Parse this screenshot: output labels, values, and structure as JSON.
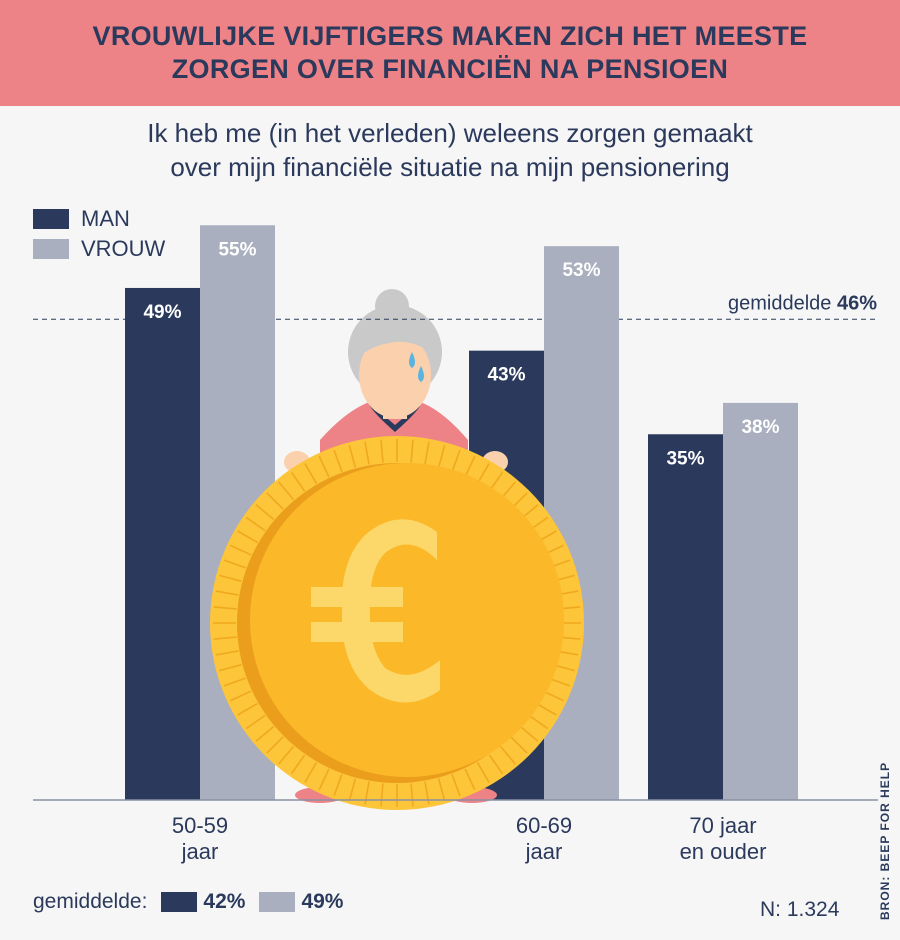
{
  "header": {
    "title_line1": "VROUWLIJKE VIJFTIGERS MAKEN ZICH HET MEESTE",
    "title_line2": "ZORGEN OVER FINANCIËN NA PENSIOEN"
  },
  "subtitle": {
    "line1": "Ik heb me (in het verleden) weleens zorgen gemaakt",
    "line2": "over mijn financiële situatie na mijn pensionering"
  },
  "legend": {
    "man": "MAN",
    "vrouw": "VROUW"
  },
  "average_line": {
    "label": "gemiddelde",
    "value_label": "46%"
  },
  "footer": {
    "avg_label": "gemiddelde:",
    "man_avg": "42%",
    "vrouw_avg": "49%",
    "n_label": "N: 1.324",
    "source": "BRON: BEEP FOR HELP"
  },
  "colors": {
    "man": "#2b3a5c",
    "vrouw": "#a9afbf",
    "header_bg": "#ee8387",
    "coin": "#fbb829",
    "coin_face": "#fcbe2c",
    "euro": "#fcd76a"
  },
  "illustration": {
    "type": "grandmother holding euro coin with tear",
    "icon": "euro-coin-icon"
  },
  "chart_data": {
    "type": "bar",
    "categories": [
      [
        "50-59",
        "jaar"
      ],
      [
        "60-69",
        "jaar"
      ],
      [
        "70 jaar",
        "en ouder"
      ]
    ],
    "series": [
      {
        "name": "MAN",
        "values": [
          49,
          43,
          35
        ]
      },
      {
        "name": "VROUW",
        "values": [
          55,
          53,
          38
        ]
      }
    ],
    "value_labels": {
      "MAN": [
        "49%",
        "43%",
        "35%"
      ],
      "VROUW": [
        "55%",
        "53%",
        "38%"
      ]
    },
    "reference_line": {
      "label": "gemiddelde",
      "value": 46
    },
    "ylim": [
      0,
      60
    ],
    "grid": false,
    "legend_position": "top-left",
    "title": "VROUWLIJKE VIJFTIGERS MAKEN ZICH HET MEESTE ZORGEN OVER FINANCIËN NA PENSIOEN"
  }
}
